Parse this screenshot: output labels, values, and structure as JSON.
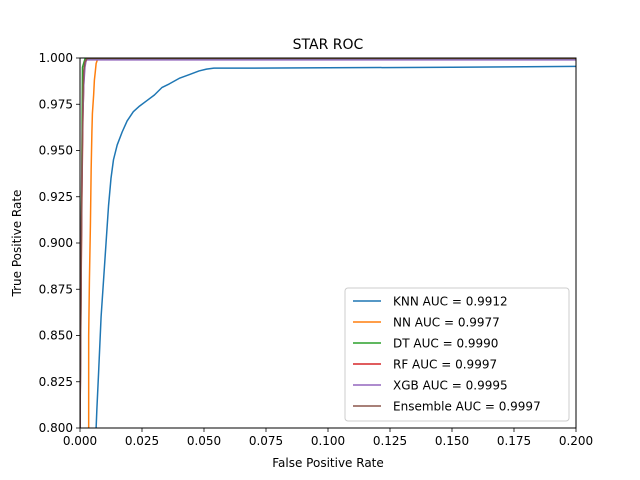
{
  "chart_data": {
    "type": "line",
    "title": "STAR ROC",
    "xlabel": "False Positive Rate",
    "ylabel": "True Positive Rate",
    "xlim": [
      0.0,
      0.2
    ],
    "ylim": [
      0.8,
      1.0
    ],
    "xticks": [
      0.0,
      0.025,
      0.05,
      0.075,
      0.1,
      0.125,
      0.15,
      0.175,
      0.2
    ],
    "xtick_labels": [
      "0.000",
      "0.025",
      "0.050",
      "0.075",
      "0.100",
      "0.125",
      "0.150",
      "0.175",
      "0.200"
    ],
    "yticks": [
      0.8,
      0.825,
      0.85,
      0.875,
      0.9,
      0.925,
      0.95,
      0.975,
      1.0
    ],
    "ytick_labels": [
      "0.800",
      "0.825",
      "0.850",
      "0.875",
      "0.900",
      "0.925",
      "0.950",
      "0.975",
      "1.000"
    ],
    "grid": false,
    "legend_position": "lower-right",
    "series": [
      {
        "name": "KNN AUC = 0.9912",
        "color": "#1f77b4",
        "x": [
          0.0065,
          0.0068,
          0.0075,
          0.0085,
          0.0095,
          0.0105,
          0.0115,
          0.0125,
          0.0135,
          0.015,
          0.017,
          0.019,
          0.0215,
          0.024,
          0.027,
          0.03,
          0.033,
          0.036,
          0.04,
          0.044,
          0.048,
          0.051,
          0.054,
          0.06,
          0.1,
          0.15,
          0.2
        ],
        "y": [
          0.8,
          0.81,
          0.83,
          0.86,
          0.88,
          0.9,
          0.92,
          0.935,
          0.945,
          0.953,
          0.96,
          0.966,
          0.971,
          0.974,
          0.977,
          0.98,
          0.984,
          0.986,
          0.989,
          0.991,
          0.993,
          0.994,
          0.9945,
          0.9945,
          0.9947,
          0.995,
          0.9955
        ]
      },
      {
        "name": "NN AUC = 0.9977",
        "color": "#ff7f0e",
        "x": [
          0.0035,
          0.0035,
          0.0038,
          0.0042,
          0.0045,
          0.0048,
          0.005,
          0.0055,
          0.0058,
          0.0062,
          0.0065,
          0.007,
          0.0075,
          0.2
        ],
        "y": [
          0.8,
          0.85,
          0.88,
          0.91,
          0.94,
          0.96,
          0.97,
          0.98,
          0.988,
          0.993,
          0.997,
          0.999,
          1.0,
          1.0
        ]
      },
      {
        "name": "DT AUC = 0.9990",
        "color": "#2ca02c",
        "x": [
          0.0,
          0.001,
          0.002,
          0.2
        ],
        "y": [
          0.8,
          0.995,
          0.9995,
          0.9995
        ]
      },
      {
        "name": "RF AUC = 0.9997",
        "color": "#d62728",
        "x": [
          0.0,
          0.0004,
          0.0008,
          0.0012,
          0.0016,
          0.002,
          0.003,
          0.2
        ],
        "y": [
          0.8,
          0.87,
          0.93,
          0.97,
          0.99,
          0.997,
          1.0,
          1.0
        ]
      },
      {
        "name": "XGB AUC = 0.9995",
        "color": "#9467bd",
        "x": [
          0.0,
          0.0005,
          0.001,
          0.0015,
          0.002,
          0.0025,
          0.2
        ],
        "y": [
          0.8,
          0.9,
          0.96,
          0.985,
          0.995,
          0.999,
          0.999
        ]
      },
      {
        "name": "Ensemble AUC = 0.9997",
        "color": "#8c564b",
        "x": [
          0.0,
          0.0003,
          0.0006,
          0.0009,
          0.0012,
          0.0015,
          0.002,
          0.003,
          0.2
        ],
        "y": [
          0.8,
          0.85,
          0.91,
          0.95,
          0.98,
          0.993,
          0.998,
          1.0,
          1.0
        ]
      }
    ]
  }
}
